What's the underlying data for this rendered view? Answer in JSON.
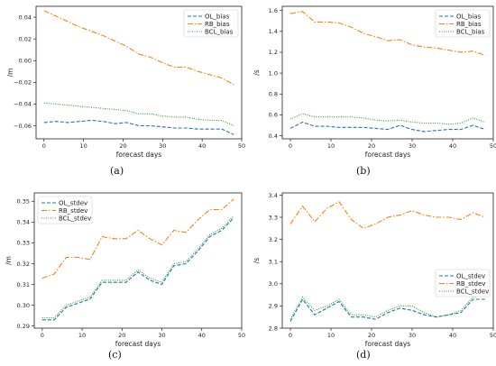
{
  "chart_data": [
    {
      "id": "a",
      "type": "line",
      "caption": "(a)",
      "xlabel": "forecast days",
      "ylabel": "/m",
      "xlim": [
        -2,
        50
      ],
      "ylim": [
        -0.072,
        0.05
      ],
      "xticks": [
        0,
        10,
        20,
        30,
        40,
        50
      ],
      "yticks": [
        -0.06,
        -0.04,
        -0.02,
        0.0,
        0.02,
        0.04
      ],
      "ytick_labels": [
        "−0.06",
        "−0.04",
        "−0.02",
        "0.00",
        "0.02",
        "0.04"
      ],
      "legend": "top-right",
      "x": [
        0,
        3,
        6,
        9,
        12,
        15,
        18,
        21,
        24,
        27,
        30,
        33,
        36,
        39,
        42,
        45,
        48
      ],
      "series": [
        {
          "name": "OL_bias",
          "color": "#1f77b4",
          "dash": "4,2",
          "values": [
            -0.057,
            -0.056,
            -0.057,
            -0.056,
            -0.055,
            -0.056,
            -0.058,
            -0.057,
            -0.06,
            -0.06,
            -0.061,
            -0.062,
            -0.062,
            -0.063,
            -0.063,
            -0.063,
            -0.068
          ]
        },
        {
          "name": "RB_bias",
          "color": "#ff7f0e",
          "dash": "6,2,1.5,2",
          "values": [
            0.046,
            0.041,
            0.036,
            0.031,
            0.027,
            0.023,
            0.018,
            0.013,
            0.006,
            0.003,
            -0.002,
            -0.006,
            -0.006,
            -0.01,
            -0.013,
            -0.016,
            -0.022
          ]
        },
        {
          "name": "BCL_bias",
          "color": "#2ca02c",
          "dash": "1,1.5",
          "values": [
            -0.039,
            -0.04,
            -0.041,
            -0.042,
            -0.043,
            -0.044,
            -0.045,
            -0.046,
            -0.049,
            -0.049,
            -0.051,
            -0.052,
            -0.052,
            -0.054,
            -0.055,
            -0.055,
            -0.06
          ]
        }
      ]
    },
    {
      "id": "b",
      "type": "line",
      "caption": "(b)",
      "xlabel": "forecast days",
      "ylabel": "/s",
      "xlim": [
        -2,
        50
      ],
      "ylim": [
        0.37,
        1.64
      ],
      "xticks": [
        0,
        10,
        20,
        30,
        40,
        50
      ],
      "yticks": [
        0.4,
        0.6,
        0.8,
        1.0,
        1.2,
        1.4,
        1.6
      ],
      "ytick_labels": [
        "0.4",
        "0.6",
        "0.8",
        "1.0",
        "1.2",
        "1.4",
        "1.6"
      ],
      "legend": "top-right",
      "x": [
        0,
        3,
        6,
        9,
        12,
        15,
        18,
        21,
        24,
        27,
        30,
        33,
        36,
        39,
        42,
        45,
        48
      ],
      "series": [
        {
          "name": "OL_bias",
          "color": "#1f77b4",
          "dash": "4,2",
          "values": [
            0.47,
            0.53,
            0.49,
            0.49,
            0.48,
            0.48,
            0.48,
            0.47,
            0.46,
            0.5,
            0.46,
            0.44,
            0.45,
            0.46,
            0.46,
            0.5,
            0.46
          ]
        },
        {
          "name": "RB_bias",
          "color": "#ff7f0e",
          "dash": "6,2,1.5,2",
          "values": [
            1.57,
            1.59,
            1.49,
            1.49,
            1.48,
            1.44,
            1.38,
            1.35,
            1.31,
            1.32,
            1.27,
            1.25,
            1.24,
            1.22,
            1.2,
            1.21,
            1.17
          ]
        },
        {
          "name": "BCL_bias",
          "color": "#2ca02c",
          "dash": "1,1.5",
          "values": [
            0.56,
            0.61,
            0.58,
            0.58,
            0.58,
            0.58,
            0.57,
            0.55,
            0.54,
            0.55,
            0.53,
            0.52,
            0.52,
            0.51,
            0.52,
            0.57,
            0.53
          ]
        }
      ]
    },
    {
      "id": "c",
      "type": "line",
      "caption": "(c)",
      "xlabel": "forecast days",
      "ylabel": "/m",
      "xlim": [
        -2,
        50
      ],
      "ylim": [
        0.289,
        0.354
      ],
      "xticks": [
        0,
        10,
        20,
        30,
        40,
        50
      ],
      "yticks": [
        0.29,
        0.3,
        0.31,
        0.32,
        0.33,
        0.34,
        0.35
      ],
      "ytick_labels": [
        "0.29",
        "0.30",
        "0.31",
        "0.32",
        "0.33",
        "0.34",
        "0.35"
      ],
      "legend": "top-left",
      "x": [
        0,
        3,
        6,
        9,
        12,
        15,
        18,
        21,
        24,
        27,
        30,
        33,
        36,
        39,
        42,
        45,
        48
      ],
      "series": [
        {
          "name": "OL_stdev",
          "color": "#1f77b4",
          "dash": "4,2",
          "values": [
            0.293,
            0.293,
            0.299,
            0.301,
            0.303,
            0.311,
            0.311,
            0.311,
            0.316,
            0.312,
            0.31,
            0.319,
            0.32,
            0.326,
            0.333,
            0.336,
            0.342
          ]
        },
        {
          "name": "RB_stdev",
          "color": "#ff7f0e",
          "dash": "6,2,1.5,2",
          "values": [
            0.313,
            0.315,
            0.323,
            0.323,
            0.322,
            0.333,
            0.332,
            0.332,
            0.336,
            0.332,
            0.329,
            0.336,
            0.335,
            0.341,
            0.346,
            0.346,
            0.351
          ]
        },
        {
          "name": "BCL_stdev",
          "color": "#2ca02c",
          "dash": "1,1.5",
          "values": [
            0.294,
            0.294,
            0.3,
            0.302,
            0.304,
            0.312,
            0.312,
            0.312,
            0.317,
            0.313,
            0.311,
            0.32,
            0.321,
            0.327,
            0.334,
            0.337,
            0.343
          ]
        }
      ]
    },
    {
      "id": "d",
      "type": "line",
      "caption": "(d)",
      "xlabel": "forecast days",
      "ylabel": "/s",
      "xlim": [
        -2,
        50
      ],
      "ylim": [
        2.8,
        3.41
      ],
      "xticks": [
        0,
        10,
        20,
        30,
        40,
        50
      ],
      "yticks": [
        2.8,
        2.9,
        3.0,
        3.1,
        3.2,
        3.3,
        3.4
      ],
      "ytick_labels": [
        "2.8",
        "2.9",
        "3.0",
        "3.1",
        "3.2",
        "3.3",
        "3.4"
      ],
      "legend": "center-right",
      "x": [
        0,
        3,
        6,
        9,
        12,
        15,
        18,
        21,
        24,
        27,
        30,
        33,
        36,
        39,
        42,
        45,
        48
      ],
      "series": [
        {
          "name": "OL_stdev",
          "color": "#1f77b4",
          "dash": "4,2",
          "values": [
            2.83,
            2.93,
            2.86,
            2.89,
            2.92,
            2.85,
            2.85,
            2.84,
            2.87,
            2.89,
            2.88,
            2.86,
            2.85,
            2.86,
            2.87,
            2.93,
            2.93
          ]
        },
        {
          "name": "RB_stdev",
          "color": "#ff7f0e",
          "dash": "6,2,1.5,2",
          "values": [
            3.27,
            3.35,
            3.28,
            3.34,
            3.37,
            3.29,
            3.25,
            3.27,
            3.3,
            3.31,
            3.33,
            3.31,
            3.3,
            3.3,
            3.29,
            3.32,
            3.3
          ]
        },
        {
          "name": "BCL_stdev",
          "color": "#2ca02c",
          "dash": "1,1.5",
          "values": [
            2.84,
            2.94,
            2.88,
            2.9,
            2.93,
            2.86,
            2.86,
            2.85,
            2.88,
            2.9,
            2.9,
            2.87,
            2.85,
            2.86,
            2.88,
            2.94,
            2.95
          ]
        }
      ]
    }
  ]
}
